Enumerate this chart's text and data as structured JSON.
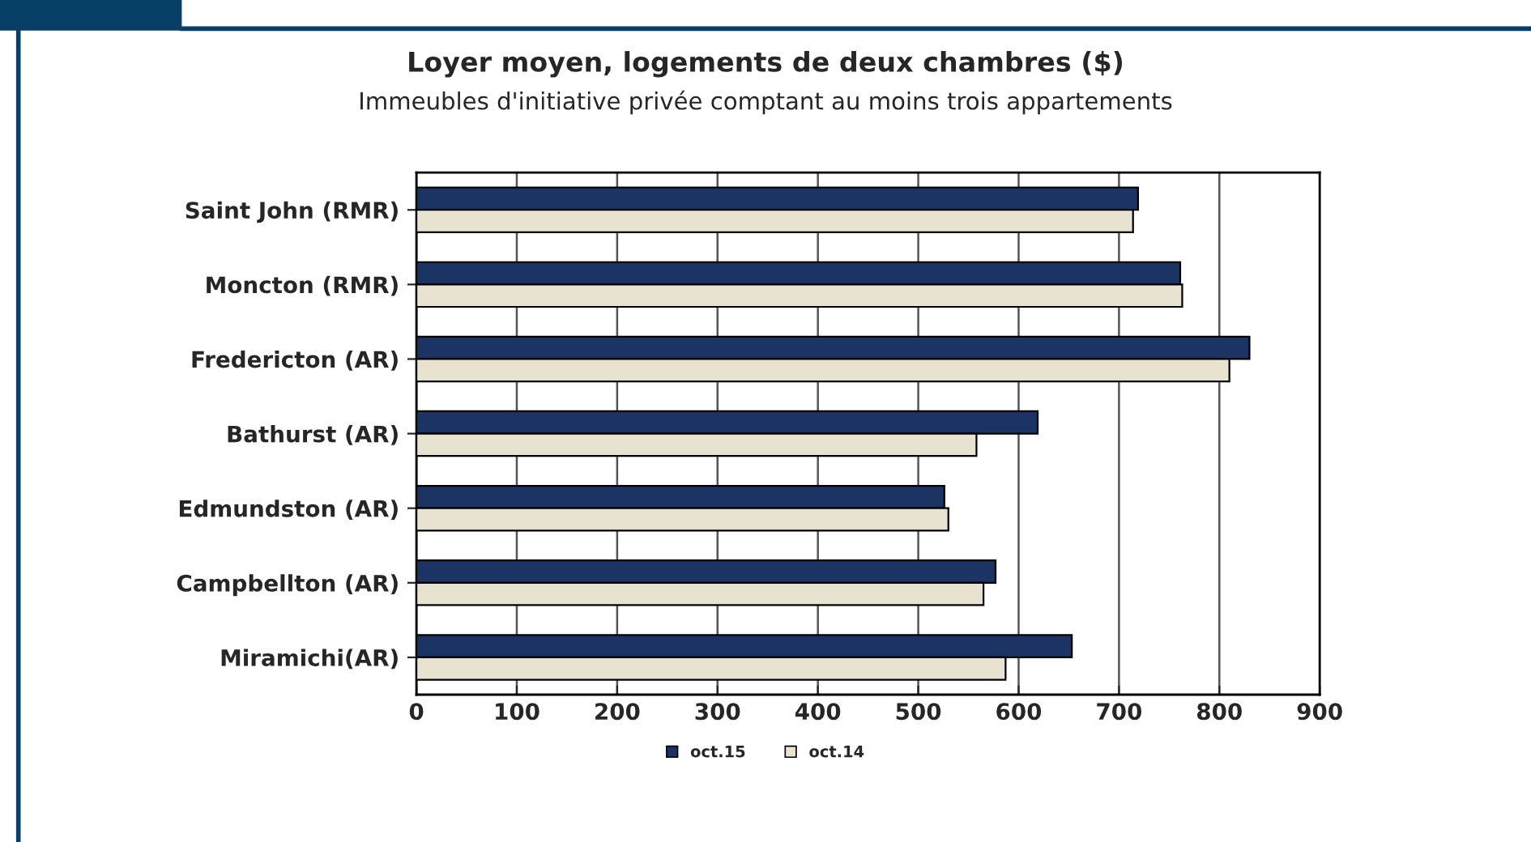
{
  "chart_data": {
    "type": "bar",
    "orientation": "horizontal",
    "title": "Loyer moyen, logements de deux chambres ($)",
    "subtitle": "Immeubles d'initiative privée comptant au moins trois appartements",
    "categories": [
      "Saint John (RMR)",
      "Moncton (RMR)",
      "Fredericton (AR)",
      "Bathurst (AR)",
      "Edmundston (AR)",
      "Campbellton (AR)",
      "Miramichi(AR)"
    ],
    "series": [
      {
        "name": "oct.15",
        "color": "#1c3464",
        "values": [
          719,
          761,
          830,
          619,
          526,
          577,
          653
        ]
      },
      {
        "name": "oct.14",
        "color": "#e8e2d0",
        "values": [
          714,
          763,
          810,
          558,
          530,
          565,
          587
        ]
      }
    ],
    "xlim": [
      0,
      900
    ],
    "xticks": [
      0,
      100,
      200,
      300,
      400,
      500,
      600,
      700,
      800,
      900
    ],
    "grid": "x",
    "legend": "bottom"
  }
}
